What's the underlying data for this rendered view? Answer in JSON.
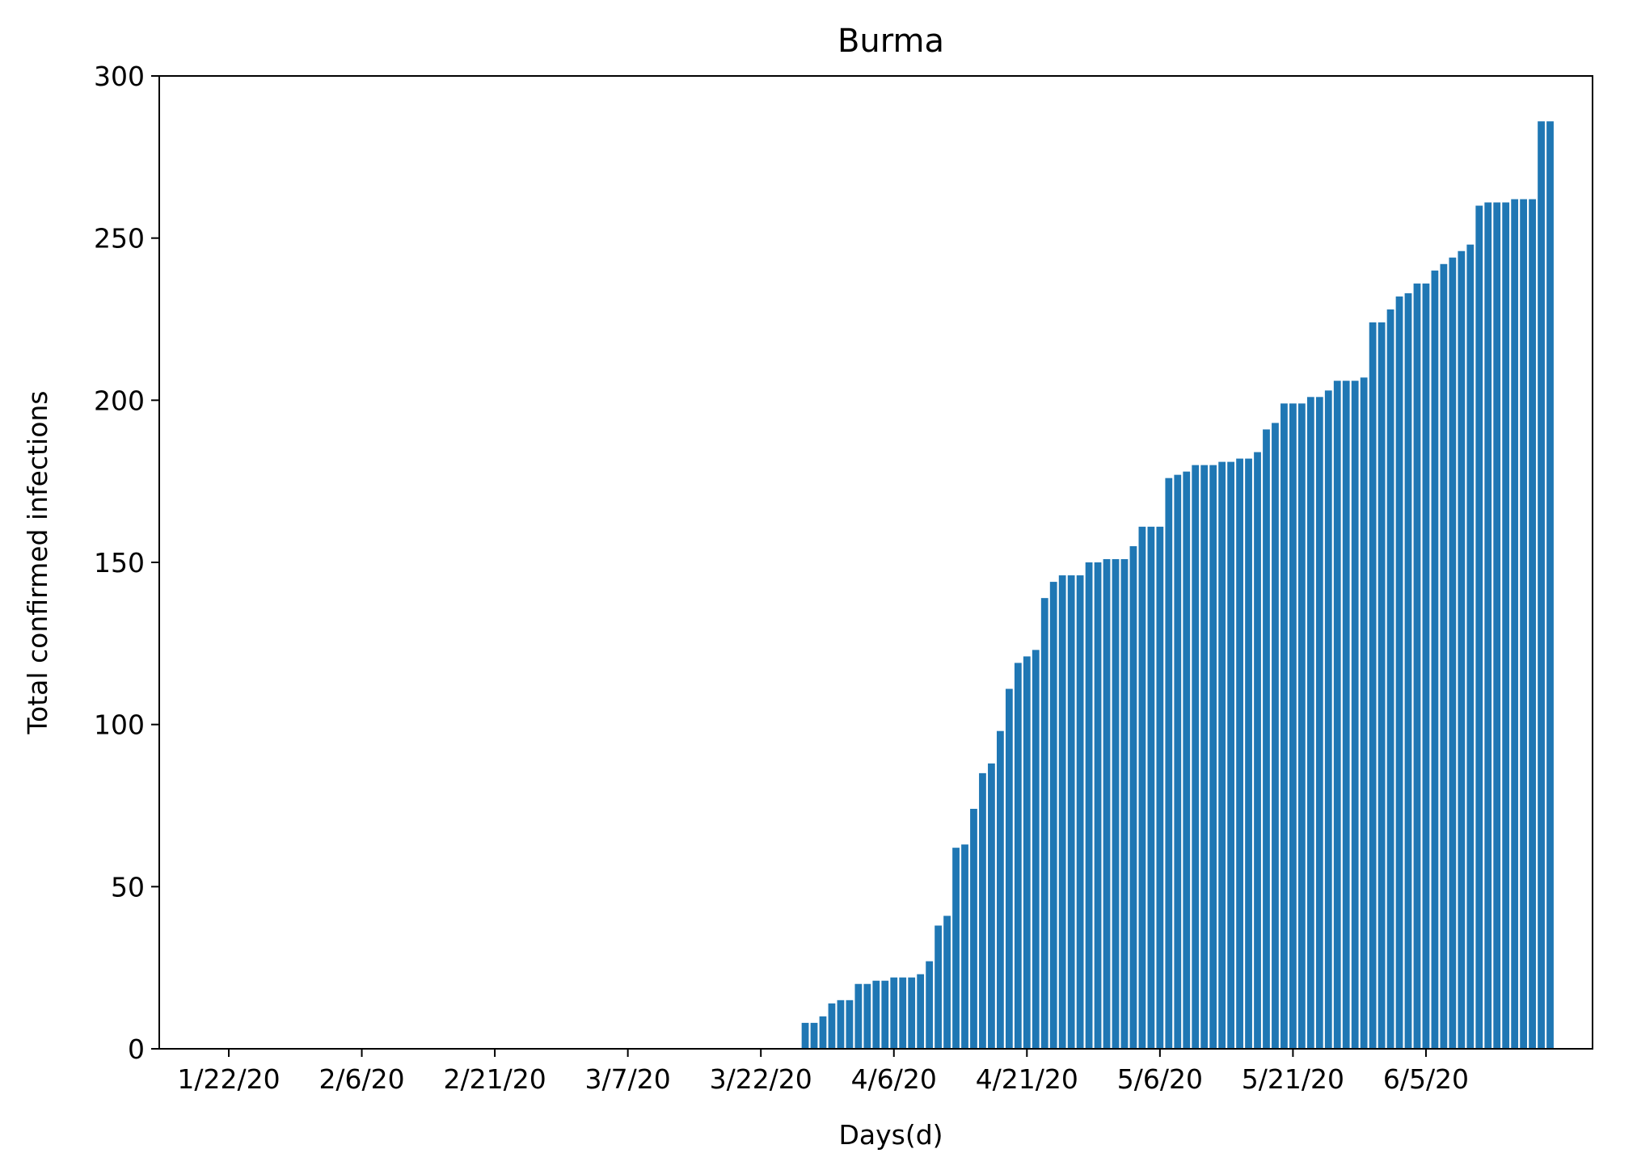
{
  "chart_data": {
    "type": "bar",
    "title": "Burma",
    "xlabel": "Days(d)",
    "ylabel": "Total confirmed infections",
    "ylim": [
      0,
      300
    ],
    "y_ticks": [
      0,
      50,
      100,
      150,
      200,
      250,
      300
    ],
    "x_tick_labels": [
      "1/22/20",
      "2/6/20",
      "2/21/20",
      "3/7/20",
      "3/22/20",
      "4/6/20",
      "4/21/20",
      "5/6/20",
      "5/21/20",
      "6/5/20"
    ],
    "grid": false,
    "color": "#1f77b4",
    "categories": [
      "1/22/20",
      "1/23/20",
      "1/24/20",
      "1/25/20",
      "1/26/20",
      "1/27/20",
      "1/28/20",
      "1/29/20",
      "1/30/20",
      "1/31/20",
      "2/1/20",
      "2/2/20",
      "2/3/20",
      "2/4/20",
      "2/5/20",
      "2/6/20",
      "2/7/20",
      "2/8/20",
      "2/9/20",
      "2/10/20",
      "2/11/20",
      "2/12/20",
      "2/13/20",
      "2/14/20",
      "2/15/20",
      "2/16/20",
      "2/17/20",
      "2/18/20",
      "2/19/20",
      "2/20/20",
      "2/21/20",
      "2/22/20",
      "2/23/20",
      "2/24/20",
      "2/25/20",
      "2/26/20",
      "2/27/20",
      "2/28/20",
      "2/29/20",
      "3/1/20",
      "3/2/20",
      "3/3/20",
      "3/4/20",
      "3/5/20",
      "3/6/20",
      "3/7/20",
      "3/8/20",
      "3/9/20",
      "3/10/20",
      "3/11/20",
      "3/12/20",
      "3/13/20",
      "3/14/20",
      "3/15/20",
      "3/16/20",
      "3/17/20",
      "3/18/20",
      "3/19/20",
      "3/20/20",
      "3/21/20",
      "3/22/20",
      "3/23/20",
      "3/24/20",
      "3/25/20",
      "3/26/20",
      "3/27/20",
      "3/28/20",
      "3/29/20",
      "3/30/20",
      "3/31/20",
      "4/1/20",
      "4/2/20",
      "4/3/20",
      "4/4/20",
      "4/5/20",
      "4/6/20",
      "4/7/20",
      "4/8/20",
      "4/9/20",
      "4/10/20",
      "4/11/20",
      "4/12/20",
      "4/13/20",
      "4/14/20",
      "4/15/20",
      "4/16/20",
      "4/17/20",
      "4/18/20",
      "4/19/20",
      "4/20/20",
      "4/21/20",
      "4/22/20",
      "4/23/20",
      "4/24/20",
      "4/25/20",
      "4/26/20",
      "4/27/20",
      "4/28/20",
      "4/29/20",
      "4/30/20",
      "5/1/20",
      "5/2/20",
      "5/3/20",
      "5/4/20",
      "5/5/20",
      "5/6/20",
      "5/7/20",
      "5/8/20",
      "5/9/20",
      "5/10/20",
      "5/11/20",
      "5/12/20",
      "5/13/20",
      "5/14/20",
      "5/15/20",
      "5/16/20",
      "5/17/20",
      "5/18/20",
      "5/19/20",
      "5/20/20",
      "5/21/20",
      "5/22/20",
      "5/23/20",
      "5/24/20",
      "5/25/20",
      "5/26/20",
      "5/27/20",
      "5/28/20",
      "5/29/20",
      "5/30/20",
      "5/31/20",
      "6/1/20",
      "6/2/20",
      "6/3/20",
      "6/4/20",
      "6/5/20",
      "6/6/20",
      "6/7/20",
      "6/8/20",
      "6/9/20",
      "6/10/20",
      "6/11/20",
      "6/12/20",
      "6/13/20",
      "6/14/20",
      "6/15/20",
      "6/16/20",
      "6/17/20",
      "6/18/20",
      "6/19/20"
    ],
    "values": [
      0,
      0,
      0,
      0,
      0,
      0,
      0,
      0,
      0,
      0,
      0,
      0,
      0,
      0,
      0,
      0,
      0,
      0,
      0,
      0,
      0,
      0,
      0,
      0,
      0,
      0,
      0,
      0,
      0,
      0,
      0,
      0,
      0,
      0,
      0,
      0,
      0,
      0,
      0,
      0,
      0,
      0,
      0,
      0,
      0,
      0,
      0,
      0,
      0,
      0,
      0,
      0,
      0,
      0,
      0,
      0,
      0,
      0,
      0,
      0,
      0,
      0,
      0,
      0,
      0,
      8,
      8,
      10,
      14,
      15,
      15,
      20,
      20,
      21,
      21,
      22,
      22,
      22,
      23,
      27,
      38,
      41,
      62,
      63,
      74,
      85,
      88,
      98,
      111,
      119,
      121,
      123,
      139,
      144,
      146,
      146,
      146,
      150,
      150,
      151,
      151,
      151,
      155,
      161,
      161,
      161,
      176,
      177,
      178,
      180,
      180,
      180,
      181,
      181,
      182,
      182,
      184,
      191,
      193,
      199,
      199,
      199,
      201,
      201,
      203,
      206,
      206,
      206,
      207,
      224,
      224,
      228,
      232,
      233,
      236,
      236,
      240,
      242,
      244,
      246,
      248,
      260,
      261,
      261,
      261,
      262,
      262,
      262,
      286,
      286
    ]
  }
}
